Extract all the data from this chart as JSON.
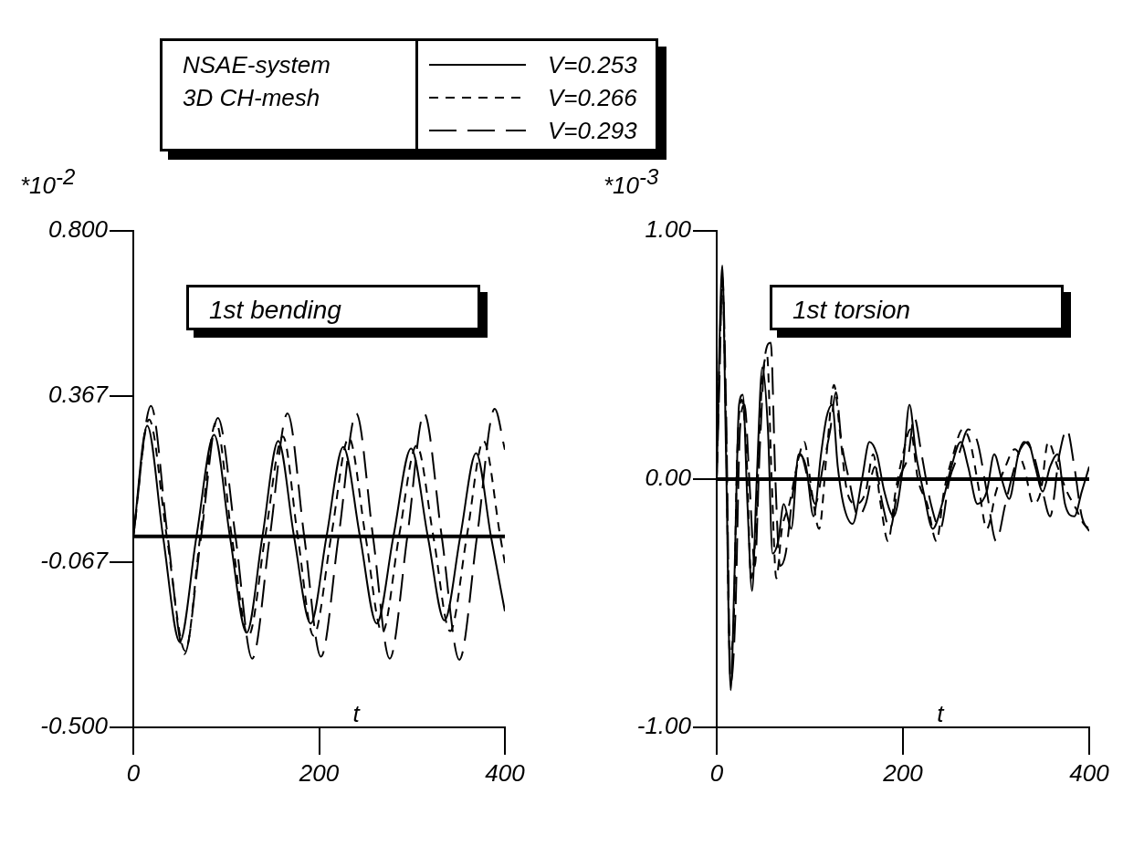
{
  "chart_data": [
    {
      "type": "line",
      "title": "1st bending",
      "xlabel": "t",
      "ylabel": "*10$^{-2}$",
      "legend_title": "NSAE-system\n3D CH-mesh",
      "legend": "top",
      "grid": false,
      "marker": "none",
      "xlim": [
        0,
        400
      ],
      "xticks": [
        0,
        200,
        400
      ],
      "ylim": [
        -0.5,
        0.8
      ],
      "yticks": [
        {
          "value": -0.5,
          "label": "-0.500"
        },
        {
          "value": -0.067,
          "label": "-0.067"
        },
        {
          "value": 0.367,
          "label": "0.367"
        },
        {
          "value": 0.8,
          "label": "0.800"
        }
      ],
      "ref_lines": [
        {
          "axis": "y",
          "value": 0,
          "label": null,
          "color": "#000000"
        }
      ],
      "series": [
        {
          "name": "V=0.253",
          "color": "#000000",
          "line_style": "solid",
          "x": [
            0,
            15,
            32,
            50,
            68,
            87,
            104,
            122,
            139,
            156,
            173,
            191,
            208,
            226,
            244,
            262,
            280,
            299,
            317,
            335,
            352,
            369,
            385,
            400
          ],
          "values": [
            0,
            0.29,
            0,
            -0.276,
            0,
            0.266,
            0,
            -0.252,
            0,
            0.25,
            0,
            -0.228,
            0,
            0.234,
            0,
            -0.228,
            0,
            0.23,
            0,
            -0.22,
            0,
            0.218,
            0,
            -0.196
          ]
        },
        {
          "name": "V=0.266",
          "color": "#000000",
          "line_style": "dashed",
          "x": [
            0,
            17,
            36,
            56,
            72,
            89,
            106,
            124,
            142,
            161,
            177,
            194,
            213,
            232,
            250,
            268,
            286,
            305,
            323,
            341,
            359,
            377,
            395,
            400
          ],
          "values": [
            0,
            0.306,
            0,
            -0.3,
            0,
            0.298,
            0,
            -0.26,
            0,
            0.262,
            0,
            -0.26,
            0,
            0.258,
            0,
            -0.252,
            0,
            0.238,
            0,
            -0.248,
            0,
            0.25,
            0,
            -0.07
          ]
        },
        {
          "name": "V=0.293",
          "color": "#000000",
          "line_style": "longdash",
          "x": [
            0,
            19,
            37,
            55,
            73,
            91,
            110,
            128,
            147,
            166,
            184,
            202,
            221,
            240,
            258,
            276,
            295,
            313,
            332,
            351,
            370,
            389,
            400
          ],
          "values": [
            0,
            0.342,
            0,
            -0.308,
            0,
            0.31,
            0,
            -0.32,
            0,
            0.322,
            0,
            -0.315,
            0,
            0.322,
            0,
            -0.32,
            0,
            0.322,
            0,
            -0.323,
            0,
            0.334,
            0.227
          ]
        }
      ]
    },
    {
      "type": "line",
      "title": "1st torsion",
      "xlabel": "t",
      "ylabel": "*10$^{-3}$",
      "grid": false,
      "marker": "none",
      "xlim": [
        0,
        400
      ],
      "xticks": [
        0,
        200,
        400
      ],
      "ylim": [
        -1,
        1
      ],
      "yticks": [
        {
          "value": -1,
          "label": "-1.00"
        },
        {
          "value": 0,
          "label": "0.00"
        },
        {
          "value": 1,
          "label": "1.00"
        }
      ],
      "ref_lines": [
        {
          "axis": "y",
          "value": 0,
          "label": null,
          "color": "#000000"
        }
      ],
      "series": [
        {
          "color": "#000000",
          "line_style": "solid",
          "x": [
            0,
            3,
            6,
            10,
            15,
            19,
            24,
            28,
            33,
            38,
            43,
            49,
            55,
            60,
            66,
            72,
            80,
            88,
            96,
            104,
            112,
            118,
            124,
            130,
            136,
            146,
            156,
            164,
            172,
            180,
            190,
            200,
            207,
            214,
            222,
            232,
            242,
            252,
            262,
            270,
            280,
            290,
            298,
            306,
            314,
            324,
            334,
            342,
            350,
            358,
            366,
            374,
            384,
            392,
            400
          ],
          "values": [
            0,
            0.55,
            0.86,
            0.1,
            -0.85,
            -0.4,
            0.3,
            0.34,
            -0.1,
            -0.45,
            0,
            0.45,
            0.2,
            -0.3,
            -0.25,
            -0.1,
            -0.2,
            0.1,
            0.05,
            -0.15,
            0.1,
            0.25,
            0.3,
            0.05,
            -0.1,
            -0.18,
            0,
            0.15,
            0.1,
            -0.05,
            -0.15,
            0.05,
            0.3,
            0.1,
            -0.05,
            -0.2,
            -0.1,
            0.05,
            0.15,
            0.05,
            -0.1,
            -0.05,
            0.1,
            0,
            -0.08,
            0.1,
            0.15,
            0.05,
            -0.05,
            0.05,
            0.1,
            -0.1,
            -0.15,
            -0.05,
            0.05
          ]
        },
        {
          "color": "#000000",
          "line_style": "dashed",
          "x": [
            0,
            3,
            6,
            10,
            14,
            18,
            22,
            27,
            32,
            37,
            42,
            48,
            54,
            59,
            64,
            70,
            78,
            86,
            94,
            102,
            110,
            118,
            126,
            132,
            140,
            150,
            160,
            168,
            176,
            184,
            192,
            200,
            208,
            216,
            226,
            236,
            244,
            254,
            264,
            272,
            282,
            290,
            300,
            310,
            320,
            330,
            340,
            348,
            356,
            366,
            376,
            386,
            394,
            400
          ],
          "values": [
            0,
            0.5,
            0.8,
            0.2,
            -0.7,
            -0.6,
            0.1,
            0.32,
            0.1,
            -0.4,
            -0.2,
            0.35,
            0.5,
            0,
            -0.4,
            -0.2,
            -0.1,
            0.05,
            0.15,
            -0.05,
            -0.2,
            0.1,
            0.38,
            0.2,
            -0.05,
            -0.1,
            -0.05,
            0.1,
            -0.1,
            -0.25,
            -0.05,
            0.1,
            0.2,
            0,
            -0.1,
            -0.25,
            -0.05,
            0.1,
            0.2,
            0.15,
            -0.05,
            -0.2,
            -0.05,
            0.05,
            0.12,
            0.05,
            -0.1,
            -0.05,
            0.15,
            0.05,
            -0.05,
            -0.12,
            -0.18,
            -0.2
          ]
        },
        {
          "color": "#000000",
          "line_style": "longdash",
          "x": [
            0,
            3,
            6,
            10,
            15,
            20,
            25,
            30,
            35,
            41,
            46,
            52,
            58,
            63,
            68,
            74,
            82,
            90,
            98,
            106,
            114,
            122,
            128,
            134,
            142,
            152,
            160,
            170,
            178,
            186,
            196,
            206,
            212,
            220,
            230,
            240,
            250,
            260,
            270,
            280,
            290,
            300,
            310,
            320,
            330,
            340,
            350,
            358,
            368,
            376,
            384,
            392,
            400
          ],
          "values": [
            0,
            0.4,
            0.82,
            0.3,
            -0.82,
            -0.55,
            0.2,
            0.3,
            0,
            -0.35,
            0.1,
            0.5,
            0.55,
            0,
            -0.35,
            -0.3,
            -0.05,
            0.1,
            0,
            -0.1,
            0.05,
            0.2,
            0.35,
            0.15,
            0,
            -0.15,
            -0.1,
            0.05,
            -0.1,
            -0.2,
            0,
            0.1,
            0.25,
            0.1,
            -0.1,
            -0.2,
            0,
            0.1,
            0.2,
            0.15,
            -0.05,
            -0.25,
            -0.1,
            0.05,
            0.15,
            0.1,
            -0.05,
            -0.15,
            0.1,
            0.2,
            0.05,
            -0.15,
            -0.21
          ]
        }
      ]
    }
  ]
}
